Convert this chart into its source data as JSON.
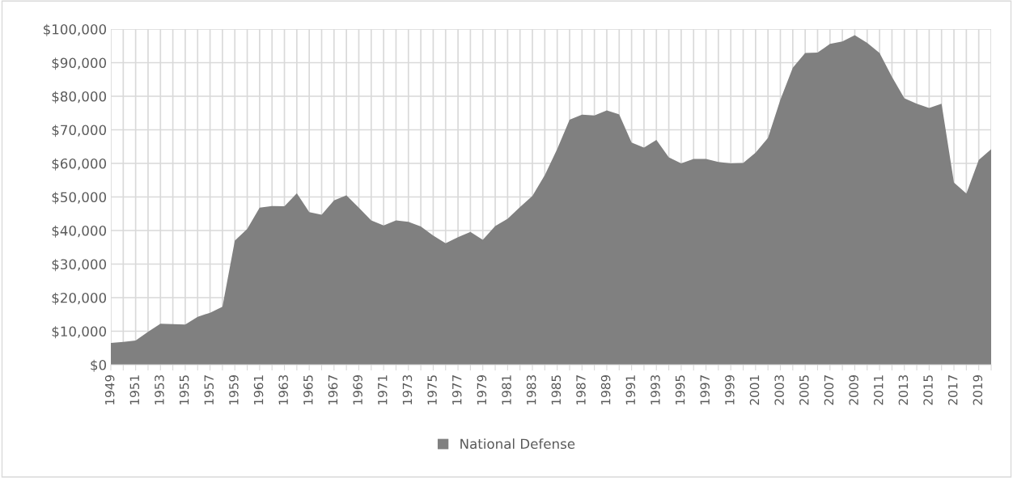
{
  "chart_data": {
    "type": "area",
    "categories": [
      "1949",
      null,
      "1951",
      null,
      "1953",
      null,
      "1955",
      null,
      "1957",
      null,
      "1959",
      null,
      "1961",
      null,
      "1963",
      null,
      "1965",
      null,
      "1967",
      null,
      "1969",
      null,
      "1971",
      null,
      "1973",
      null,
      "1975",
      null,
      "1977",
      null,
      "1979",
      null,
      "1981",
      null,
      "1983",
      null,
      "1985",
      null,
      "1987",
      null,
      "1989",
      null,
      "1991",
      null,
      "1993",
      null,
      "1995",
      null,
      "1997",
      null,
      "1999",
      null,
      "2001",
      null,
      "2003",
      null,
      "2005",
      null,
      "2007",
      null,
      "2009",
      null,
      "2011",
      null,
      "2013",
      null,
      "2015",
      null,
      "2017",
      null,
      "2019",
      null
    ],
    "series": [
      {
        "name": "National Defense",
        "color": "#808080",
        "values": [
          6500,
          6800,
          7200,
          9800,
          12200,
          12100,
          12000,
          14300,
          15500,
          17300,
          37000,
          40500,
          46800,
          47300,
          47200,
          51100,
          45500,
          44700,
          49000,
          50500,
          46800,
          43000,
          41500,
          43000,
          42600,
          41200,
          38500,
          36200,
          38000,
          39600,
          37200,
          41300,
          43500,
          47000,
          50300,
          56500,
          64300,
          73000,
          74500,
          74300,
          75800,
          74600,
          66200,
          64700,
          67000,
          61800,
          60000,
          61300,
          61300,
          60400,
          60000,
          60100,
          63200,
          67600,
          79000,
          88500,
          92900,
          93000,
          95600,
          96300,
          98200,
          95900,
          92900,
          85800,
          79400,
          77800,
          76500,
          77800,
          54300,
          51000,
          61000,
          64200
        ]
      }
    ],
    "ylim": [
      0,
      100000
    ],
    "yticks": [
      {
        "value": 0,
        "label": "$0"
      },
      {
        "value": 10000,
        "label": "$10,000"
      },
      {
        "value": 20000,
        "label": "$20,000"
      },
      {
        "value": 30000,
        "label": "$30,000"
      },
      {
        "value": 40000,
        "label": "$40,000"
      },
      {
        "value": 50000,
        "label": "$50,000"
      },
      {
        "value": 60000,
        "label": "$60,000"
      },
      {
        "value": 70000,
        "label": "$70,000"
      },
      {
        "value": 80000,
        "label": "$80,000"
      },
      {
        "value": 90000,
        "label": "$90,000"
      },
      {
        "value": 100000,
        "label": "$100,000"
      }
    ],
    "grid": true,
    "legend": "bottom"
  }
}
